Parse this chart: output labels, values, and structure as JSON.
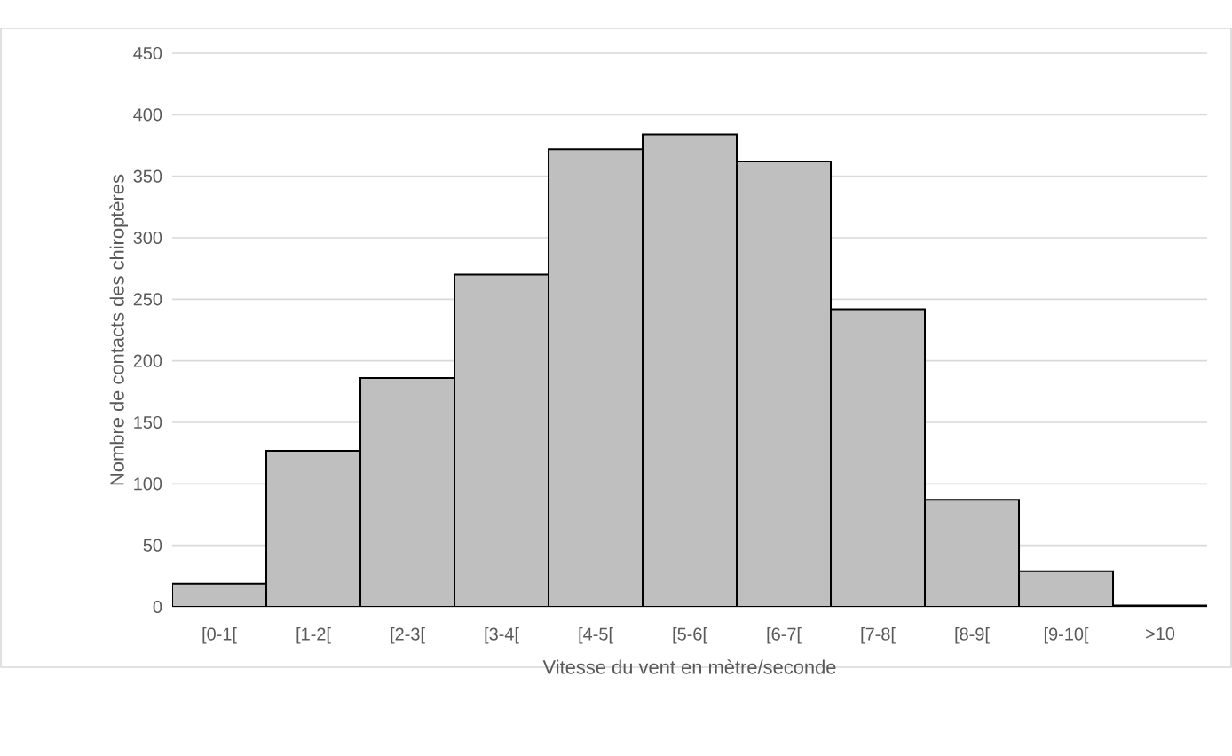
{
  "chart_data": {
    "type": "bar",
    "xlabel": "Vitesse du vent en mètre/seconde",
    "ylabel": "Nombre de contacts des chiroptères",
    "categories": [
      "[0-1[",
      "[1-2[",
      "[2-3[",
      "[3-4[",
      "[4-5[",
      "[5-6[",
      "[6-7[",
      "[7-8[",
      "[8-9[",
      "[9-10[",
      ">10"
    ],
    "values": [
      19,
      127,
      186,
      270,
      372,
      384,
      362,
      242,
      87,
      29,
      1
    ],
    "color": "#bfbfbf",
    "ylim": [
      0,
      450
    ],
    "yticks": [
      0,
      50,
      100,
      150,
      200,
      250,
      300,
      350,
      400,
      450
    ],
    "grid": "y"
  }
}
